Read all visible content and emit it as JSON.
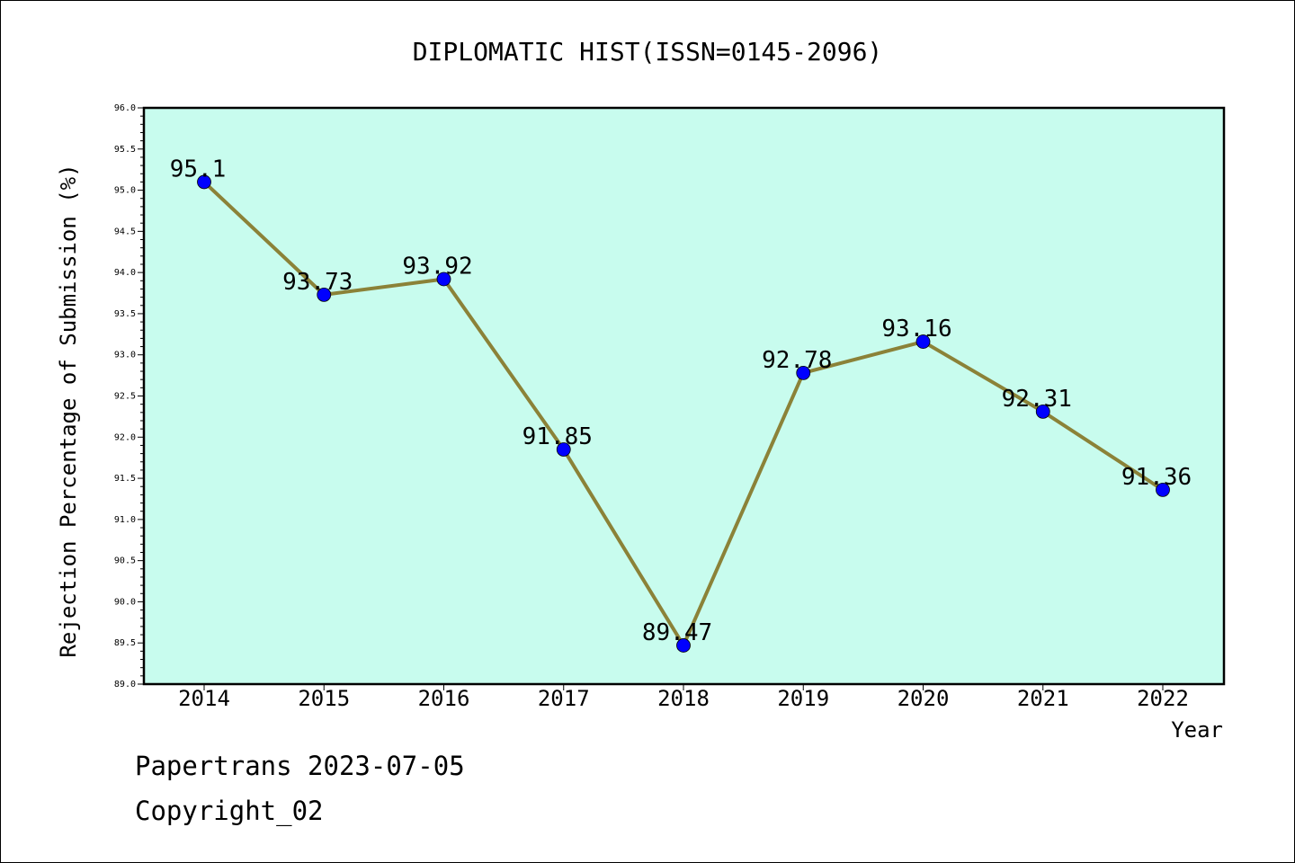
{
  "chart_data": {
    "type": "line",
    "title": "DIPLOMATIC HIST(ISSN=0145-2096)",
    "xlabel": "Year",
    "ylabel": "Rejection Percentage of Submission (%)",
    "categories": [
      "2014",
      "2015",
      "2016",
      "2017",
      "2018",
      "2019",
      "2020",
      "2021",
      "2022"
    ],
    "values": [
      95.1,
      93.73,
      93.92,
      91.85,
      89.47,
      92.78,
      93.16,
      92.31,
      91.36
    ],
    "data_labels": [
      "95.1",
      "93.73",
      "93.92",
      "91.85",
      "89.47",
      "92.78",
      "93.16",
      "92.31",
      "91.36"
    ],
    "ylim": [
      89.0,
      96.0
    ],
    "y_ticks": [
      "89.0",
      "89.5",
      "90.0",
      "90.5",
      "91.0",
      "91.5",
      "92.0",
      "92.5",
      "93.0",
      "93.5",
      "94.0",
      "94.5",
      "95.0",
      "95.5",
      "96.0"
    ],
    "grid": false,
    "colors": {
      "plot_background": "#c8fcee",
      "line": "#8b8238",
      "marker": "#0000ff"
    }
  },
  "footer": {
    "line1": "Papertrans 2023-07-05",
    "line2": "Copyright_02"
  }
}
